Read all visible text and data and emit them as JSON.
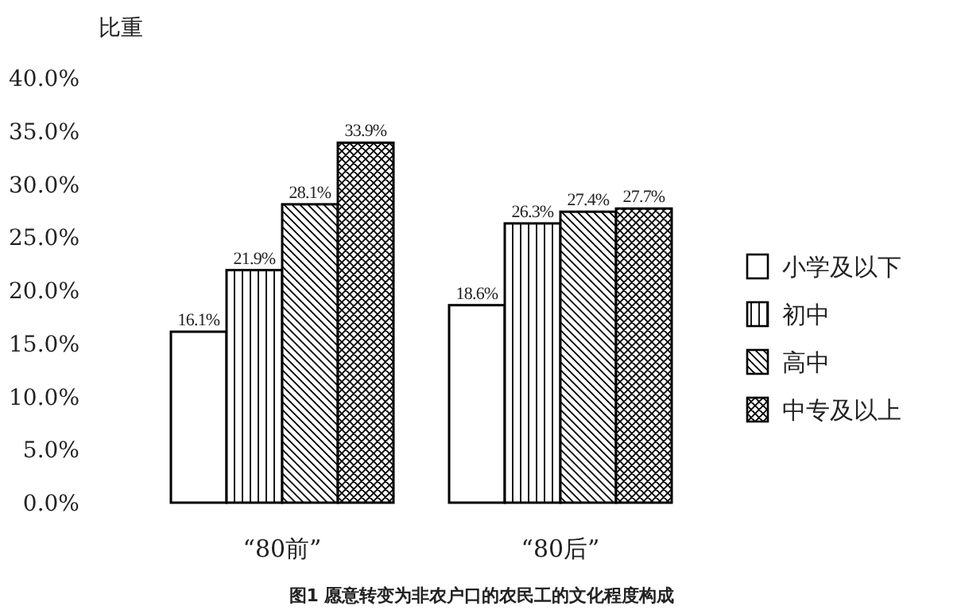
{
  "chart_data": {
    "type": "bar",
    "title": "图1  愿意转变为非农户口的农民工的文化程度构成",
    "ylabel": "比重",
    "categories": [
      "“80前”",
      "“80后”"
    ],
    "series": [
      {
        "name": "小学及以下",
        "color": "#000000",
        "values": [
          16.1,
          18.6
        ],
        "value_labels": [
          "16.1%",
          "18.6%"
        ]
      },
      {
        "name": "初中",
        "color": "#000000",
        "values": [
          21.9,
          26.3
        ],
        "value_labels": [
          "21.9%",
          "26.3%"
        ]
      },
      {
        "name": "高中",
        "color": "#000000",
        "values": [
          28.1,
          27.4
        ],
        "value_labels": [
          "28.1%",
          "27.4%"
        ]
      },
      {
        "name": "中专及以上",
        "color": "#000000",
        "values": [
          33.9,
          27.7
        ],
        "value_labels": [
          "33.9%",
          "27.7%"
        ]
      }
    ],
    "ylim": [
      0,
      40
    ],
    "yticks": [
      {
        "value": 0,
        "label": "0.0%"
      },
      {
        "value": 5,
        "label": "5.0%"
      },
      {
        "value": 10,
        "label": "10.0%"
      },
      {
        "value": 15,
        "label": "15.0%"
      },
      {
        "value": 20,
        "label": "20.0%"
      },
      {
        "value": 25,
        "label": "25.0%"
      },
      {
        "value": 30,
        "label": "30.0%"
      },
      {
        "value": 35,
        "label": "35.0%"
      },
      {
        "value": 40,
        "label": "40.0%"
      }
    ],
    "grid": false,
    "legend": "right"
  }
}
